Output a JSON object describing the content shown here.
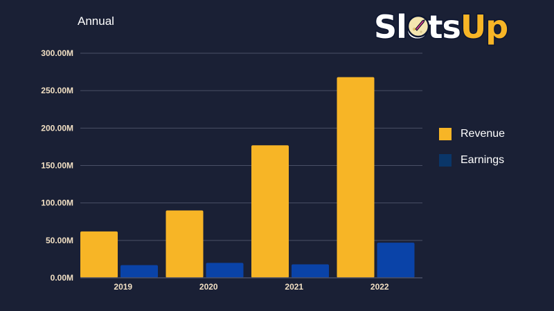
{
  "brand": {
    "logo_text": "SlotsUp"
  },
  "colors": {
    "background": "#1a2035",
    "revenue": "#f7b526",
    "earnings": "#0a43a8",
    "grid": "#4a5066",
    "tick": "#f2e0c4"
  },
  "chart_data": {
    "type": "bar",
    "title": "Annual",
    "categories": [
      "2019",
      "2020",
      "2021",
      "2022"
    ],
    "series": [
      {
        "name": "Revenue",
        "values": [
          62.0,
          90.0,
          177.0,
          268.0
        ],
        "color": "#f7b526",
        "legend_color": "#f7b526"
      },
      {
        "name": "Earnings",
        "values": [
          17.0,
          20.0,
          18.0,
          47.0
        ],
        "color": "#0a43a8",
        "legend_color": "#0a3668"
      }
    ],
    "yticks": [
      "0.00M",
      "50.00M",
      "100.00M",
      "150.00M",
      "200.00M",
      "250.00M",
      "300.00M"
    ],
    "ytick_values": [
      0,
      50,
      100,
      150,
      200,
      250,
      300
    ],
    "ylim": [
      0,
      300
    ],
    "grid": true,
    "legend_position": "right"
  }
}
